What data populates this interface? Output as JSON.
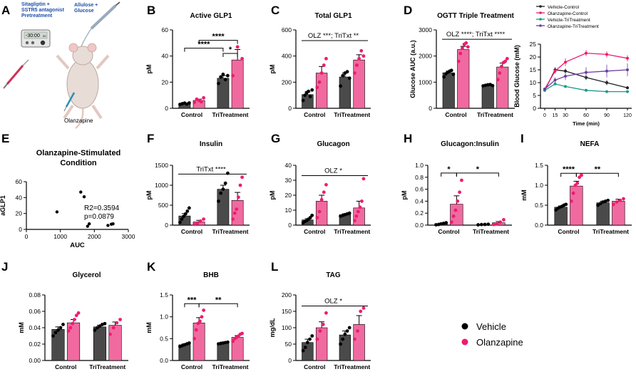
{
  "colors": {
    "vehicle": "#4a4a4a",
    "olanzapine": "#f06aa0",
    "olanzapine_dot": "#ee1c6e",
    "triTreatment_line": "#1a9a8a",
    "olz_tri_line": "#6b3fa0",
    "axis": "#000000"
  },
  "schematic": {
    "letter": "A",
    "pretreat_label": "Sitagliptin +\nSSTR5 antagonist\nPretreatment",
    "gavage_label": "Allulose +\nGlucose",
    "timer_text": "-30:00",
    "timer_sub": "00",
    "drug_label": "Olanzapine"
  },
  "legend": {
    "items": [
      {
        "label": "Vehicle",
        "color": "#000000"
      },
      {
        "label": "Olanzapine",
        "color": "#ee1c6e"
      }
    ]
  },
  "chart_data": [
    {
      "id": "B",
      "type": "bar",
      "title": "Active GLP1",
      "ylabel": "pM",
      "ylim": [
        0,
        60
      ],
      "yticks": [
        0,
        20,
        40,
        60
      ],
      "categories": [
        "Control",
        "TriTreatment"
      ],
      "series": [
        {
          "name": "Vehicle",
          "values": [
            3.5,
            23
          ],
          "err": [
            0.5,
            2
          ],
          "points": [
            [
              3,
              3.5,
              4,
              3.2,
              4.1
            ],
            [
              19,
              24,
              26,
              22,
              25
            ]
          ]
        },
        {
          "name": "Olanzapine",
          "values": [
            6,
            37
          ],
          "err": [
            1,
            8
          ],
          "points": [
            [
              4.5,
              7,
              6,
              5,
              8
            ],
            [
              25,
              47,
              38
            ]
          ]
        }
      ],
      "brackets": [
        {
          "from": [
            0,
            0
          ],
          "to": [
            1,
            0
          ],
          "level": 46,
          "label": "****"
        },
        {
          "from": [
            0,
            1
          ],
          "to": [
            1,
            1
          ],
          "level": 52,
          "label": "****"
        },
        {
          "from": [
            1,
            0
          ],
          "to": [
            1,
            1
          ],
          "level": 42,
          "label": "*"
        }
      ]
    },
    {
      "id": "C",
      "type": "bar",
      "title": "Total GLP1",
      "ylabel": "pM",
      "ylim": [
        0,
        600
      ],
      "yticks": [
        0,
        200,
        400,
        600
      ],
      "categories": [
        "Control",
        "TriTreatment"
      ],
      "series": [
        {
          "name": "Vehicle",
          "values": [
            105,
            240
          ],
          "err": [
            20,
            30
          ],
          "points": [
            [
              60,
              100,
              120,
              130,
              90,
              140
            ],
            [
              170,
              250,
              270,
              280,
              230
            ]
          ]
        },
        {
          "name": "Olanzapine",
          "values": [
            270,
            370
          ],
          "err": [
            50,
            40
          ],
          "points": [
            [
              160,
              200,
              270,
              330,
              380
            ],
            [
              270,
              330,
              380,
              440,
              400
            ]
          ]
        }
      ],
      "annotation": {
        "text": "OLZ ***; TriTxt **",
        "level": 540
      }
    },
    {
      "id": "D",
      "type": "bar",
      "title": "OGTT Triple Treatment",
      "ylabel": "Glucose AUC (a.u.)",
      "ylim": [
        0,
        3000
      ],
      "yticks": [
        0,
        1000,
        2000,
        3000
      ],
      "categories": [
        "Control",
        "TriTreatment"
      ],
      "series": [
        {
          "name": "Vehicle",
          "values": [
            1360,
            890
          ],
          "err": [
            60,
            20
          ],
          "points": [
            [
              1200,
              1320,
              1380,
              1420,
              1450,
              1300
            ],
            [
              860,
              880,
              900,
              910,
              870
            ]
          ]
        },
        {
          "name": "Olanzapine",
          "values": [
            2250,
            1580
          ],
          "err": [
            120,
            150
          ],
          "points": [
            [
              1800,
              2100,
              2300,
              2450,
              2500,
              2350
            ],
            [
              1100,
              1350,
              1600,
              1750,
              1800,
              1900
            ]
          ]
        }
      ],
      "annotation": {
        "text": "OLZ ****; TriTxt ****",
        "level": 2750
      }
    },
    {
      "id": "D2",
      "type": "line",
      "title": "",
      "xlabel": "Time (min)",
      "ylabel": "Blood Glucose (mM)",
      "x": [
        0,
        15,
        30,
        60,
        90,
        120
      ],
      "ylim": [
        0,
        25
      ],
      "yticks": [
        0,
        5,
        10,
        15,
        20,
        25
      ],
      "series": [
        {
          "name": "Vehicle-Control",
          "color": "#222222",
          "values": [
            7,
            15,
            14.5,
            12,
            10,
            8
          ],
          "err": [
            0.5,
            1,
            1,
            1,
            1,
            0.6
          ]
        },
        {
          "name": "Olanzapine-Control",
          "color": "#ee1c6e",
          "values": [
            7.5,
            14.5,
            18,
            21.5,
            21,
            19.5
          ],
          "err": [
            0.5,
            1,
            1.5,
            1.2,
            1.2,
            1.2
          ]
        },
        {
          "name": "Vehicle-TriTreatment",
          "color": "#1a9a8a",
          "values": [
            7,
            9.5,
            8.5,
            7,
            6.5,
            6.5
          ],
          "err": [
            0.3,
            0.5,
            0.4,
            0.3,
            0.3,
            0.3
          ]
        },
        {
          "name": "Olanzapine-TriTreatment",
          "color": "#6b3fa0",
          "values": [
            7.5,
            11,
            12.5,
            14,
            14.5,
            15
          ],
          "err": [
            0.5,
            1,
            1.5,
            2,
            2.5,
            2.5
          ]
        }
      ]
    },
    {
      "id": "E",
      "type": "scatter",
      "title": "Olanzapine-Stimulated\nCondition",
      "xlabel": "AUC",
      "ylabel": "aGLP1",
      "xlim": [
        0,
        3000
      ],
      "xticks": [
        0,
        1000,
        2000,
        3000
      ],
      "ylim": [
        0,
        60
      ],
      "yticks": [
        0,
        20,
        40,
        60
      ],
      "points": [
        [
          900,
          22
        ],
        [
          1600,
          47
        ],
        [
          1700,
          41
        ],
        [
          1850,
          7
        ],
        [
          1800,
          4
        ],
        [
          2400,
          5
        ],
        [
          2500,
          6.5
        ],
        [
          2550,
          7
        ]
      ],
      "stats": [
        "R2=0.3594",
        "p=0.0879"
      ]
    },
    {
      "id": "F",
      "type": "bar",
      "title": "Insulin",
      "ylabel": "pM",
      "ylim": [
        0,
        1500
      ],
      "yticks": [
        0,
        500,
        1000,
        1500
      ],
      "categories": [
        "Control",
        "TriTreatment"
      ],
      "series": [
        {
          "name": "Vehicle",
          "values": [
            230,
            900
          ],
          "err": [
            60,
            100
          ],
          "points": [
            [
              70,
              150,
              220,
              280,
              350,
              430
            ],
            [
              600,
              800,
              900,
              1050,
              1300
            ]
          ]
        },
        {
          "name": "Olanzapine",
          "values": [
            80,
            620
          ],
          "err": [
            40,
            200
          ],
          "points": [
            [
              20,
              50,
              100,
              150
            ],
            [
              150,
              300,
              400,
              700,
              1000,
              1200
            ]
          ]
        }
      ],
      "annotation": {
        "text": "TriTxt ****",
        "level": 1350
      }
    },
    {
      "id": "G",
      "type": "bar",
      "title": "Glucagon",
      "ylabel": "pM",
      "ylim": [
        0,
        40
      ],
      "yticks": [
        0,
        10,
        20,
        30,
        40
      ],
      "categories": [
        "Control",
        "TriTreatment"
      ],
      "series": [
        {
          "name": "Vehicle",
          "values": [
            3.5,
            7
          ],
          "err": [
            0.8,
            0.6
          ],
          "points": [
            [
              1.5,
              2.5,
              3,
              4,
              5,
              6.5
            ],
            [
              6,
              6.5,
              7,
              7.5,
              8
            ]
          ]
        },
        {
          "name": "Olanzapine",
          "values": [
            16,
            11.5
          ],
          "err": [
            4,
            4.5
          ],
          "points": [
            [
              5,
              9,
              17,
              22,
              27
            ],
            [
              3,
              6,
              9,
              12,
              16,
              31
            ]
          ]
        }
      ],
      "annotation": {
        "text": "OLZ *",
        "level": 35
      }
    },
    {
      "id": "H",
      "type": "bar",
      "title": "Glucagon:Insulin",
      "ylabel": "pM",
      "ylim": [
        0,
        1.0
      ],
      "yticks": [
        0.0,
        0.2,
        0.4,
        0.6,
        0.8,
        1.0
      ],
      "categories": [
        "Control",
        "TriTreatment"
      ],
      "series": [
        {
          "name": "Vehicle",
          "values": [
            0.025,
            0.01
          ],
          "err": [
            0.008,
            0.003
          ],
          "points": [
            [
              0.005,
              0.01,
              0.02,
              0.03,
              0.04
            ],
            [
              0.005,
              0.01,
              0.012,
              0.015
            ]
          ]
        },
        {
          "name": "Olanzapine",
          "values": [
            0.35,
            0.04
          ],
          "err": [
            0.14,
            0.02
          ],
          "points": [
            [
              0.05,
              0.15,
              0.25,
              0.4,
              0.55,
              0.75
            ],
            [
              0.01,
              0.02,
              0.05,
              0.09
            ]
          ]
        }
      ],
      "brackets": [
        {
          "from": [
            0,
            0
          ],
          "to": [
            0,
            1
          ],
          "level": 0.87,
          "label": "*"
        },
        {
          "from": [
            0,
            1
          ],
          "to": [
            1,
            1
          ],
          "level": 0.87,
          "label": "*"
        }
      ]
    },
    {
      "id": "I",
      "type": "bar",
      "title": "NEFA",
      "ylabel": "mM",
      "ylim": [
        0,
        1.5
      ],
      "yticks": [
        0.0,
        0.5,
        1.0,
        1.5
      ],
      "categories": [
        "Control",
        "TriTreatment"
      ],
      "series": [
        {
          "name": "Vehicle",
          "values": [
            0.45,
            0.56
          ],
          "err": [
            0.03,
            0.04
          ],
          "points": [
            [
              0.38,
              0.42,
              0.45,
              0.47,
              0.5,
              0.52
            ],
            [
              0.5,
              0.54,
              0.58,
              0.6,
              0.62
            ]
          ]
        },
        {
          "name": "Olanzapine",
          "values": [
            0.98,
            0.6
          ],
          "err": [
            0.12,
            0.05
          ],
          "points": [
            [
              0.6,
              0.8,
              1.0,
              1.05,
              1.2,
              1.25
            ],
            [
              0.52,
              0.58,
              0.62,
              0.66
            ]
          ]
        }
      ],
      "brackets": [
        {
          "from": [
            0,
            0
          ],
          "to": [
            0,
            1
          ],
          "level": 1.3,
          "label": "****"
        },
        {
          "from": [
            0,
            1
          ],
          "to": [
            1,
            1
          ],
          "level": 1.3,
          "label": "**"
        }
      ]
    },
    {
      "id": "J",
      "type": "bar",
      "title": "Glycerol",
      "ylabel": "mM",
      "ylim": [
        0,
        0.08
      ],
      "yticks": [
        0.0,
        0.02,
        0.04,
        0.06,
        0.08
      ],
      "categories": [
        "Control",
        "TriTreatment"
      ],
      "series": [
        {
          "name": "Vehicle",
          "values": [
            0.038,
            0.041
          ],
          "err": [
            0.003,
            0.002
          ],
          "points": [
            [
              0.03,
              0.034,
              0.037,
              0.04,
              0.044
            ],
            [
              0.037,
              0.04,
              0.042,
              0.044,
              0.045
            ]
          ]
        },
        {
          "name": "Olanzapine",
          "values": [
            0.046,
            0.043
          ],
          "err": [
            0.004,
            0.004
          ],
          "points": [
            [
              0.036,
              0.04,
              0.045,
              0.05,
              0.055,
              0.058
            ],
            [
              0.032,
              0.04,
              0.046,
              0.05
            ]
          ]
        }
      ]
    },
    {
      "id": "K",
      "type": "bar",
      "title": "BHB",
      "ylabel": "mM",
      "ylim": [
        0,
        1.5
      ],
      "yticks": [
        0.0,
        0.5,
        1.0,
        1.5
      ],
      "categories": [
        "Control",
        "TriTreatment"
      ],
      "series": [
        {
          "name": "Vehicle",
          "values": [
            0.36,
            0.4
          ],
          "err": [
            0.02,
            0.02
          ],
          "points": [
            [
              0.32,
              0.34,
              0.36,
              0.38,
              0.4
            ],
            [
              0.38,
              0.39,
              0.4,
              0.41,
              0.42
            ]
          ]
        },
        {
          "name": "Olanzapine",
          "values": [
            0.86,
            0.53
          ],
          "err": [
            0.12,
            0.04
          ],
          "points": [
            [
              0.5,
              0.7,
              0.85,
              0.9,
              1.0,
              1.15
            ],
            [
              0.44,
              0.5,
              0.53,
              0.56,
              0.6,
              0.62
            ]
          ]
        }
      ],
      "brackets": [
        {
          "from": [
            0,
            0
          ],
          "to": [
            0,
            1
          ],
          "level": 1.3,
          "label": "***"
        },
        {
          "from": [
            0,
            1
          ],
          "to": [
            1,
            1
          ],
          "level": 1.3,
          "label": "**"
        }
      ]
    },
    {
      "id": "L",
      "type": "bar",
      "title": "TAG",
      "ylabel": "mg/dL",
      "ylim": [
        0,
        200
      ],
      "yticks": [
        0,
        50,
        100,
        150,
        200
      ],
      "categories": [
        "Control",
        "TriTreatment"
      ],
      "series": [
        {
          "name": "Vehicle",
          "values": [
            55,
            78
          ],
          "err": [
            10,
            12
          ],
          "points": [
            [
              30,
              40,
              55,
              65,
              75
            ],
            [
              50,
              65,
              80,
              90,
              100
            ]
          ]
        },
        {
          "name": "Olanzapine",
          "values": [
            100,
            110
          ],
          "err": [
            18,
            27
          ],
          "points": [
            [
              65,
              90,
              110,
              145
            ],
            [
              65,
              90,
              150,
              160
            ]
          ]
        }
      ],
      "annotation": {
        "text": "OLZ *",
        "level": 175
      }
    }
  ]
}
